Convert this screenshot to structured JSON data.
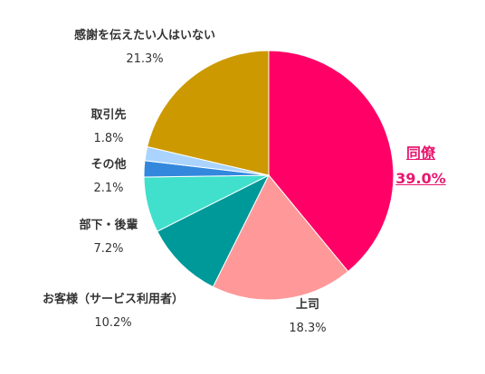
{
  "chart_data": {
    "type": "pie",
    "start_angle": "top",
    "direction": "clockwise",
    "slices": [
      {
        "label": "同僚",
        "value": 39.0,
        "value_label": "39.0%",
        "color": "#ff0066",
        "highlight": true
      },
      {
        "label": "上司",
        "value": 18.3,
        "value_label": "18.3%",
        "color": "#ff9999",
        "highlight": false
      },
      {
        "label": "お客様（サービス利用者）",
        "value": 10.2,
        "value_label": "10.2%",
        "color": "#009999",
        "highlight": false
      },
      {
        "label": "部下・後輩",
        "value": 7.2,
        "value_label": "7.2%",
        "color": "#40e0cc",
        "highlight": false
      },
      {
        "label": "その他",
        "value": 2.1,
        "value_label": "2.1%",
        "color": "#3388dd",
        "highlight": false
      },
      {
        "label": "取引先",
        "value": 1.8,
        "value_label": "1.8%",
        "color": "#aad4ff",
        "highlight": false
      },
      {
        "label": "感謝を伝えたい人はいない",
        "value": 21.3,
        "value_label": "21.3%",
        "color": "#cc9900",
        "highlight": false
      }
    ]
  }
}
